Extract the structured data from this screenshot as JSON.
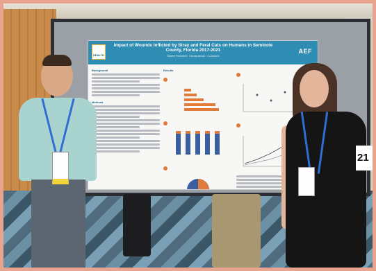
{
  "poster": {
    "title": "Impact of Wounds Inflicted by Stray and Feral Cats on Humans in Seminole County, Florida 2017-2021",
    "authors": "Student Presenters · Faculty Advisor · Co-Authors",
    "left_logo_text": "HEALTH",
    "right_logo_text": "AEF",
    "sections": [
      "Background",
      "Methods",
      "Results"
    ]
  },
  "booth_sign": {
    "number": "21"
  },
  "colors": {
    "poster_header": "#2f8db3",
    "accent_orange": "#e07b3c",
    "bar_blue": "#3a5fa0"
  }
}
